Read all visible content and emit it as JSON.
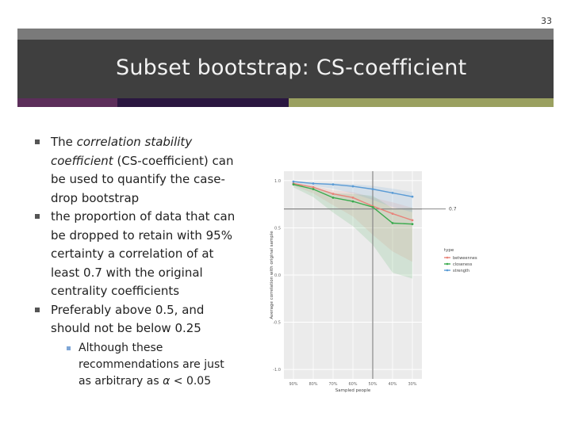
{
  "slide_number": "33",
  "title": "Subset bootstrap: CS-coefficient",
  "colors": {
    "header_bg": "#3f3f3f",
    "topbar": "#7a7a7a",
    "stripe1": "#5c2e5a",
    "stripe2": "#2a1640",
    "stripe3": "#9aa060"
  },
  "bullets": [
    {
      "pre": "The ",
      "em": "correlation stability coefficient",
      "post": " (CS-coefficient) can be used to quantify the case-drop bootstrap"
    },
    {
      "text": "the proportion of data that can be dropped to retain with 95% certainty a correlation of at least 0.7 with the original centrality coefficients"
    },
    {
      "text": "Preferably above 0.5, and should not be below 0.25"
    }
  ],
  "sub_bullet": {
    "pre": "Although these recommendations are just as arbitrary as ",
    "alpha": "α",
    "post": " < 0.05"
  },
  "chart_data": {
    "type": "line",
    "xlabel": "Sampled people",
    "ylabel": "Average correlation with original sample",
    "x": [
      "90%",
      "80%",
      "70%",
      "60%",
      "50%",
      "40%",
      "30%"
    ],
    "yticks": [
      -1.0,
      -0.5,
      0.0,
      0.5,
      1.0
    ],
    "ylim": [
      -1.1,
      1.1
    ],
    "hline": 0.7,
    "hline_label": "0.7",
    "vline_at": "50%",
    "legend_title": "type",
    "legend_position": "right",
    "series": [
      {
        "name": "betweenness",
        "color": "#e8837a",
        "values": [
          0.97,
          0.93,
          0.86,
          0.82,
          0.73,
          0.65,
          0.58
        ]
      },
      {
        "name": "closeness",
        "color": "#3aaa4e",
        "values": [
          0.96,
          0.91,
          0.82,
          0.78,
          0.72,
          0.55,
          0.54
        ]
      },
      {
        "name": "strength",
        "color": "#5a9bd5",
        "values": [
          0.99,
          0.97,
          0.96,
          0.94,
          0.91,
          0.87,
          0.83
        ]
      }
    ]
  }
}
